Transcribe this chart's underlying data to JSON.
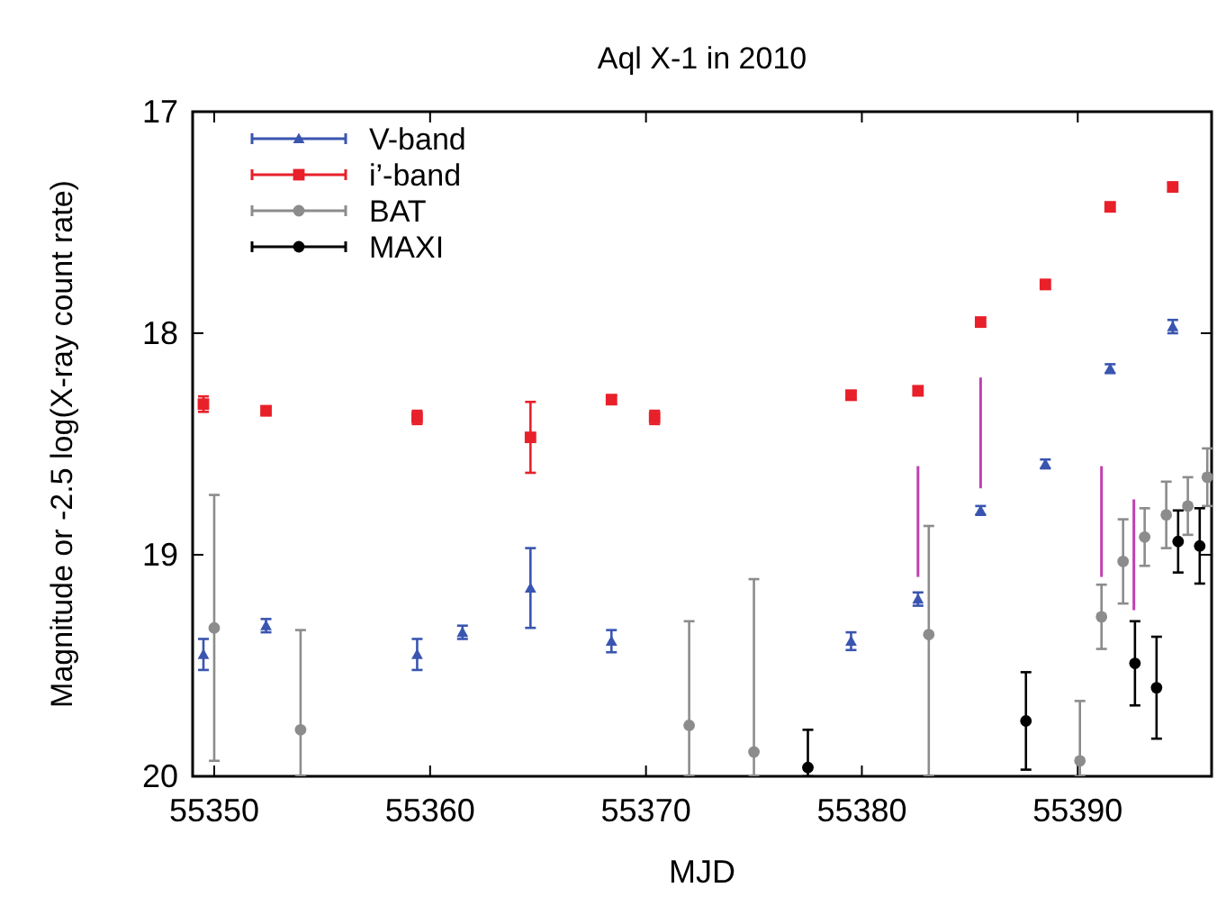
{
  "chart_data": {
    "type": "scatter",
    "title": "Aql X-1 in 2010",
    "xlabel": "MJD",
    "ylabel": "Magnitude or -2.5 log(X-ray count rate)",
    "xlim": [
      55349,
      55396.2
    ],
    "xticks": [
      55350,
      55360,
      55370,
      55380,
      55390
    ],
    "ylim": [
      20,
      17
    ],
    "yticks": [
      17,
      18,
      19,
      20
    ],
    "grid": false,
    "legend": "top left",
    "series": [
      {
        "name": "V-band",
        "color": "#3a55b0",
        "marker": "triangle",
        "x": [
          55349.5,
          55352.4,
          55359.4,
          55361.5,
          55364.65,
          55368.4,
          55379.5,
          55382.6,
          55385.5,
          55388.5,
          55391.5,
          55394.4
        ],
        "values": [
          19.45,
          19.32,
          19.45,
          19.35,
          19.15,
          19.39,
          19.39,
          19.2,
          18.8,
          18.59,
          18.16,
          17.97
        ],
        "errors": [
          0.07,
          0.03,
          0.07,
          0.03,
          0.18,
          0.05,
          0.04,
          0.03,
          0.02,
          0.02,
          0.02,
          0.03
        ]
      },
      {
        "name": "i’-band",
        "color": "#e8202a",
        "marker": "square",
        "x": [
          55349.5,
          55352.4,
          55359.4,
          55364.65,
          55368.4,
          55370.4,
          55379.5,
          55382.6,
          55385.5,
          55388.5,
          55391.5,
          55394.4
        ],
        "values": [
          18.32,
          18.35,
          18.38,
          18.47,
          18.3,
          18.38,
          18.28,
          18.26,
          17.95,
          17.78,
          17.43,
          17.34
        ],
        "errors": [
          0.035,
          0.02,
          0.03,
          0.16,
          0.02,
          0.03,
          0.02,
          0.02,
          0.02,
          0.02,
          0.02,
          0.02
        ]
      },
      {
        "name": "BAT",
        "color": "#8c8c8c",
        "marker": "circle",
        "x": [
          55350.0,
          55354.0,
          55372.0,
          55375.0,
          55383.1,
          55390.1,
          55391.1,
          55392.1,
          55393.1,
          55394.1,
          55395.1,
          55396.0
        ],
        "values": [
          19.33,
          19.79,
          19.77,
          19.89,
          19.36,
          19.93,
          19.28,
          19.03,
          18.92,
          18.82,
          18.78,
          18.65
        ],
        "errors": [
          0.6,
          [
            19.34,
            20
          ],
          [
            19.3,
            20
          ],
          [
            19.11,
            20
          ],
          [
            18.87,
            20
          ],
          [
            19.66,
            20
          ],
          0.145,
          0.19,
          0.13,
          0.15,
          0.13,
          0.13
        ]
      },
      {
        "name": "MAXI",
        "color": "#000000",
        "marker": "circle",
        "x": [
          55377.5,
          55387.6,
          55392.65,
          55393.65,
          55394.65,
          55395.65
        ],
        "values": [
          19.96,
          19.75,
          19.49,
          19.6,
          18.94,
          18.96
        ],
        "errors": [
          [
            19.79,
            20
          ],
          0.22,
          0.19,
          0.23,
          0.14,
          0.17
        ]
      },
      {
        "type": "line",
        "color": "#c040b0",
        "marker": "none",
        "x": [
          55382.6,
          55382.6
        ],
        "values": [
          18.6,
          19.1
        ]
      },
      {
        "type": "line",
        "color": "#c040b0",
        "marker": "none",
        "x": [
          55385.5,
          55385.5
        ],
        "values": [
          18.2,
          18.7
        ]
      },
      {
        "type": "line",
        "color": "#c040b0",
        "marker": "none",
        "x": [
          55391.1,
          55391.1
        ],
        "values": [
          18.6,
          19.1
        ]
      },
      {
        "type": "line",
        "color": "#c040b0",
        "marker": "none",
        "x": [
          55392.6,
          55392.6
        ],
        "values": [
          18.75,
          19.25
        ]
      }
    ]
  }
}
